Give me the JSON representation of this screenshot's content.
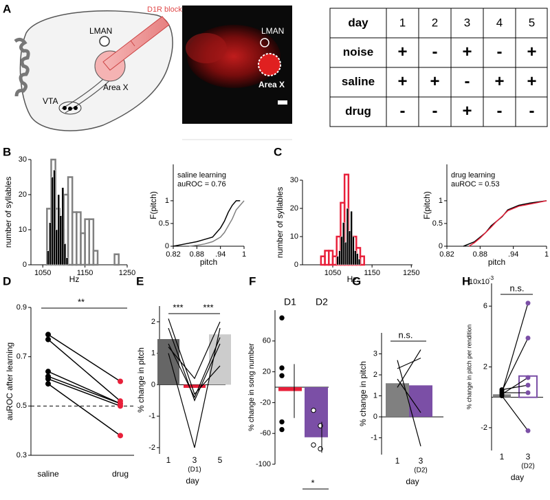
{
  "panel_labels": {
    "a": "A",
    "b": "B",
    "c": "C",
    "d": "D",
    "e": "E",
    "f": "F",
    "g": "G",
    "h": "H"
  },
  "panel_a": {
    "schematic": {
      "blocker": "D1R blocker",
      "lman": "LMAN",
      "area_x": "Area X",
      "vta": "VTA"
    },
    "image": {
      "lman": "LMAN",
      "area_x": "Area X"
    },
    "table": {
      "header": [
        "day",
        1,
        2,
        3,
        4,
        5
      ],
      "rows": [
        [
          "noise",
          "+",
          "-",
          "+",
          "-",
          "+"
        ],
        [
          "saline",
          "+",
          "+",
          "-",
          "+",
          "+"
        ],
        [
          "drug",
          "-",
          "-",
          "+",
          "-",
          "-"
        ]
      ],
      "row_colors": [
        "#1f1fe0",
        "#000000",
        "#e8203a"
      ]
    }
  },
  "panel_b": {
    "histogram": {
      "ylabel": "number of syllables",
      "xlabel": "Hz",
      "xlim": [
        1022,
        1250
      ],
      "ylim": [
        0,
        30
      ],
      "xticks": [
        1050,
        1150,
        1250
      ],
      "yticks": [
        0,
        10,
        20,
        30
      ],
      "series": [
        {
          "bins": [
            1060,
            1070,
            1080,
            1090,
            1100,
            1110,
            1120,
            1130,
            1140,
            1150,
            1160,
            1170,
            1180,
            1190,
            1200,
            1210,
            1220,
            1230
          ],
          "counts": [
            16,
            30,
            16,
            10,
            20,
            25,
            15,
            15,
            9,
            13,
            13,
            4,
            0,
            0,
            0,
            0,
            3
          ],
          "color": "#808080",
          "filled": false
        },
        {
          "bins": [
            1060,
            1065,
            1070,
            1075,
            1080,
            1085,
            1090,
            1095,
            1100,
            1105,
            1110
          ],
          "counts": [
            4,
            12,
            25,
            27,
            10,
            20,
            14,
            22,
            6,
            2
          ],
          "color": "#000000",
          "filled": true
        }
      ]
    },
    "cdf": {
      "ylabel": "F(pitch)",
      "xlabel": "pitch",
      "xlim": [
        0.82,
        1
      ],
      "ylim": [
        0,
        1.8
      ],
      "xticks": [
        0.82,
        0.88,
        {
          "value": 0.94,
          "label": ".94"
        },
        1
      ],
      "yticks": [
        0,
        0.5,
        1
      ],
      "annotation": [
        "saline learning",
        "auROC = 0.76"
      ],
      "annotation_color": "#000000",
      "series": [
        {
          "x": [
            0.82,
            0.85,
            0.88,
            0.9,
            0.92,
            0.93,
            0.94,
            0.95,
            0.96,
            0.97,
            0.98,
            0.99
          ],
          "y": [
            0,
            0.05,
            0.1,
            0.15,
            0.2,
            0.3,
            0.4,
            0.55,
            0.75,
            0.9,
            1,
            1
          ],
          "color": "#000000"
        },
        {
          "x": [
            0.86,
            0.88,
            0.9,
            0.92,
            0.94,
            0.95,
            0.96,
            0.97,
            0.98,
            0.99,
            1
          ],
          "y": [
            0,
            0.02,
            0.05,
            0.1,
            0.2,
            0.3,
            0.45,
            0.6,
            0.8,
            0.9,
            1
          ],
          "color": "#808080"
        }
      ]
    }
  },
  "panel_c": {
    "histogram": {
      "ylabel": "number of syllables",
      "xlabel": "Hz",
      "xlim": [
        973,
        1253
      ],
      "ylim": [
        0,
        30
      ],
      "xticks": [
        1050,
        1150,
        1250
      ],
      "yticks": [
        0,
        10,
        20,
        30
      ],
      "series": [
        {
          "bins": [
            1020,
            1030,
            1040,
            1050,
            1060,
            1070,
            1080,
            1090,
            1100,
            1110,
            1120,
            1130,
            1140
          ],
          "counts": [
            3,
            5,
            5,
            3,
            10,
            22,
            32,
            8,
            10,
            6,
            3,
            0
          ],
          "color": "#e8203a",
          "filled": false
        },
        {
          "bins": [
            1060,
            1065,
            1070,
            1075,
            1080,
            1085,
            1090,
            1095,
            1100,
            1105,
            1110,
            1115,
            1120
          ],
          "counts": [
            3,
            5,
            10,
            15,
            8,
            20,
            12,
            19,
            10,
            5,
            4,
            2
          ],
          "color": "#000000",
          "filled": true
        }
      ]
    },
    "cdf": {
      "ylabel": "F(pitch)",
      "xlabel": "pitch",
      "xlim": [
        0.82,
        1
      ],
      "ylim": [
        0,
        1.8
      ],
      "xticks": [
        0.82,
        0.88,
        {
          "value": 0.94,
          "label": ".94"
        },
        1
      ],
      "yticks": [
        0,
        0.5,
        1
      ],
      "annotation": [
        "drug learning",
        "auROC = 0.53"
      ],
      "annotation_color": "#e8203a",
      "series": [
        {
          "x": [
            0.85,
            0.87,
            0.88,
            0.89,
            0.9,
            0.91,
            0.92,
            0.93,
            0.95,
            0.97,
            1
          ],
          "y": [
            0,
            0.1,
            0.2,
            0.3,
            0.45,
            0.55,
            0.65,
            0.8,
            0.9,
            0.95,
            1
          ],
          "color": "#000000"
        },
        {
          "x": [
            0.86,
            0.87,
            0.88,
            0.89,
            0.9,
            0.91,
            0.92,
            0.93,
            0.95,
            0.98,
            1
          ],
          "y": [
            0,
            0.08,
            0.18,
            0.3,
            0.42,
            0.55,
            0.66,
            0.78,
            0.88,
            0.95,
            1
          ],
          "color": "#e8203a"
        }
      ]
    }
  },
  "panel_d": {
    "ylabel": "auROC after learning",
    "ylim": [
      0.3,
      0.9
    ],
    "yticks": [
      0.3,
      0.5,
      0.7,
      0.9
    ],
    "categories": [
      "saline",
      "drug"
    ],
    "reference": 0.5,
    "significance": "**",
    "series": [
      {
        "values": [
          0.79,
          0.77,
          0.64,
          0.62,
          0.61,
          0.59
        ],
        "color": "#000000"
      },
      {
        "values": [
          0.6,
          0.52,
          0.51,
          0.51,
          0.5,
          0.38
        ],
        "color": "#e8203a"
      }
    ]
  },
  "panel_e": {
    "ylabel": "% change in pitch",
    "xlabel": "day",
    "ylim": [
      -2.2,
      2.5
    ],
    "yticks": [
      -2,
      -1,
      0,
      1,
      2
    ],
    "categories": [
      1,
      3,
      5
    ],
    "sublabels": [
      null,
      "(D1)",
      null
    ],
    "values": [
      1.45,
      -0.1,
      1.6
    ],
    "colors": [
      "#666666",
      "#e8203a",
      "#cccccc"
    ],
    "lines": [
      [
        1.0,
        -2,
        1.8
      ],
      [
        1.3,
        -0.4,
        1.5
      ],
      [
        2.1,
        -0.3,
        0.6
      ],
      [
        1.2,
        0.2,
        2.0
      ],
      [
        1.8,
        -0.5,
        1.3
      ]
    ],
    "significance": [
      "***",
      "***"
    ]
  },
  "panel_f": {
    "ylabel": "% change in song number",
    "ylim": [
      -100,
      100
    ],
    "yticks": [
      -100,
      -60,
      -20,
      20,
      60
    ],
    "categories": [
      "D1",
      "D2"
    ],
    "values": [
      -5,
      -65
    ],
    "colors": [
      "#e8203a",
      "#7b4fa6"
    ],
    "points": [
      [
        90,
        25,
        15,
        -45,
        -55
      ],
      [
        -30,
        -50,
        -75,
        -80
      ]
    ],
    "significance": "*"
  },
  "panel_g": {
    "ylabel": "% change in pitch",
    "xlabel": "day",
    "ylim": [
      -1.8,
      4
    ],
    "yticks": [
      -1,
      0,
      1,
      2,
      3
    ],
    "categories": [
      1,
      3
    ],
    "sublabels": [
      null,
      "(D2)"
    ],
    "values": [
      1.6,
      1.5
    ],
    "colors": [
      "#808080",
      "#7b4fa6"
    ],
    "bar_filled": [
      true,
      true
    ],
    "lines": [
      [
        2.3,
        2.8
      ],
      [
        1.8,
        0.2
      ],
      [
        1.4,
        3.2
      ],
      [
        2.7,
        -1.4
      ]
    ],
    "significance": "n.s."
  },
  "panel_h": {
    "multiplier": "10x10",
    "multiplier_exp": "-3",
    "ylabel": "% change in pitch per rendition",
    "xlabel": "day",
    "ylim": [
      -3.5,
      7.5
    ],
    "yticks": [
      -2,
      2,
      6
    ],
    "categories": [
      1,
      3
    ],
    "sublabels": [
      null,
      "(D2)"
    ],
    "values": [
      0.2,
      1.4
    ],
    "colors": [
      "#808080",
      "#7b4fa6"
    ],
    "bar_filled": [
      true,
      false
    ],
    "lines": [
      [
        0.3,
        6.2
      ],
      [
        0.4,
        3.9
      ],
      [
        0.2,
        1.3
      ],
      [
        0.5,
        0.8
      ],
      [
        0.3,
        0.3
      ],
      [
        0.1,
        -2.2
      ]
    ],
    "significance": "n.s."
  }
}
